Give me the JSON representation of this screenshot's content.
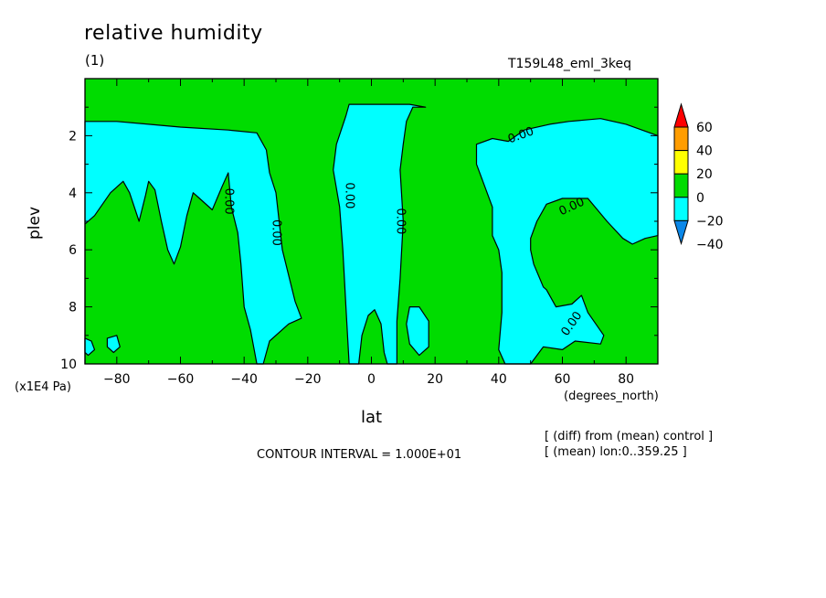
{
  "header": {
    "title": "relative humidity",
    "panel": "(1)",
    "experiment": "T159L48_eml_3keq"
  },
  "footer": {
    "contour_interval": "CONTOUR INTERVAL = 1.000E+01",
    "note_diff": "[ (diff) from (mean) control ]",
    "note_mean": "[ (mean) lon:0..359.25 ]"
  },
  "colors": {
    "level_m40": "#0a87e8",
    "level_m20": "#00ffff",
    "level_0": "#00dc00",
    "level_20": "#ffff00",
    "level_40": "#ff9d00",
    "level_60": "#ff0000",
    "contour": "#000000"
  },
  "chart_data": {
    "type": "contour",
    "title": "relative humidity",
    "xlabel": "lat",
    "ylabel": "plev",
    "xunit": "(degrees_north)",
    "yunit": "(x1E4 Pa)",
    "xlim": [
      -90,
      90
    ],
    "ylim": [
      10,
      0
    ],
    "xticks": [
      -80,
      -60,
      -40,
      -20,
      0,
      20,
      40,
      60,
      80
    ],
    "yticks": [
      2,
      4,
      6,
      8,
      10
    ],
    "contour_label": "0.00",
    "colorbar": {
      "labels": [
        "60",
        "40",
        "20",
        "0",
        "-20",
        "-40"
      ],
      "boundaries": [
        60,
        40,
        20,
        0,
        -20,
        -40
      ]
    },
    "background_level": "0 to 20",
    "regions": [
      {
        "name": "southern-hemisphere-negative",
        "level": "-20 to 0",
        "points": [
          [
            -90,
            10
          ],
          [
            -90,
            5.1
          ],
          [
            -87,
            4.8
          ],
          [
            -82,
            4.0
          ],
          [
            -78,
            3.6
          ],
          [
            -76,
            4.0
          ],
          [
            -73,
            5.0
          ],
          [
            -71,
            4.1
          ],
          [
            -70,
            3.6
          ],
          [
            -68,
            3.9
          ],
          [
            -66,
            5.0
          ],
          [
            -64,
            6.0
          ],
          [
            -62,
            6.5
          ],
          [
            -60,
            5.9
          ],
          [
            -58,
            4.8
          ],
          [
            -56,
            4.0
          ],
          [
            -54,
            4.2
          ],
          [
            -50,
            4.6
          ],
          [
            -47,
            3.8
          ],
          [
            -45,
            3.3
          ],
          [
            -44,
            4.5
          ],
          [
            -42,
            5.4
          ],
          [
            -41,
            6.5
          ],
          [
            -40,
            8.0
          ],
          [
            -38,
            8.8
          ],
          [
            -36,
            10
          ],
          [
            -34,
            10
          ],
          [
            -32,
            9.2
          ],
          [
            -26,
            8.6
          ],
          [
            -22,
            8.4
          ],
          [
            -24,
            7.8
          ],
          [
            -28,
            6.0
          ],
          [
            -29,
            5.0
          ],
          [
            -30,
            4.0
          ],
          [
            -32,
            3.3
          ],
          [
            -33,
            2.5
          ],
          [
            -36,
            1.9
          ],
          [
            -45,
            1.8
          ],
          [
            -60,
            1.7
          ],
          [
            -70,
            1.6
          ],
          [
            -80,
            1.5
          ],
          [
            -90,
            1.5
          ]
        ]
      },
      {
        "name": "equatorial-negative",
        "level": "-20 to 0",
        "points": [
          [
            -7,
            10
          ],
          [
            -4,
            10
          ],
          [
            -3,
            9.0
          ],
          [
            -1,
            8.3
          ],
          [
            1,
            8.1
          ],
          [
            3,
            8.6
          ],
          [
            4,
            9.6
          ],
          [
            5,
            10
          ],
          [
            8,
            10
          ],
          [
            8,
            8.5
          ],
          [
            9,
            7.0
          ],
          [
            10,
            5.0
          ],
          [
            9,
            3.2
          ],
          [
            10,
            2.3
          ],
          [
            11,
            1.5
          ],
          [
            13,
            1.0
          ],
          [
            17,
            1.0
          ],
          [
            12,
            0.9
          ],
          [
            -7,
            0.9
          ],
          [
            -8,
            1.3
          ],
          [
            -11,
            2.3
          ],
          [
            -12,
            3.2
          ],
          [
            -10,
            4.5
          ],
          [
            -9,
            6.0
          ],
          [
            -8,
            8.0
          ]
        ]
      },
      {
        "name": "northern-hemisphere-negative",
        "level": "-20 to 0",
        "points": [
          [
            90,
            2.0
          ],
          [
            80,
            1.6
          ],
          [
            72,
            1.4
          ],
          [
            62,
            1.5
          ],
          [
            56,
            1.6
          ],
          [
            48,
            1.8
          ],
          [
            43,
            2.2
          ],
          [
            38,
            2.1
          ],
          [
            33,
            2.3
          ],
          [
            33,
            3.0
          ],
          [
            38,
            4.5
          ],
          [
            38,
            5.5
          ],
          [
            40,
            6.0
          ],
          [
            41,
            6.8
          ],
          [
            41,
            8.2
          ],
          [
            40,
            9.5
          ],
          [
            42,
            10
          ],
          [
            50,
            10
          ],
          [
            54,
            9.4
          ],
          [
            60,
            9.5
          ],
          [
            64,
            9.2
          ],
          [
            72,
            9.3
          ],
          [
            73,
            9.0
          ],
          [
            68,
            8.2
          ],
          [
            66,
            7.6
          ],
          [
            63,
            7.9
          ],
          [
            58,
            8.0
          ],
          [
            55,
            7.4
          ],
          [
            54,
            7.3
          ],
          [
            51,
            6.5
          ],
          [
            50,
            6.0
          ],
          [
            50,
            5.6
          ],
          [
            52,
            5.0
          ],
          [
            55,
            4.4
          ],
          [
            60,
            4.2
          ],
          [
            68,
            4.2
          ],
          [
            74,
            5.0
          ],
          [
            79,
            5.6
          ],
          [
            82,
            5.8
          ],
          [
            86,
            5.6
          ],
          [
            90,
            5.5
          ]
        ]
      },
      {
        "name": "equatorial-island-negative",
        "level": "-20 to 0",
        "points": [
          [
            12,
            9.3
          ],
          [
            11,
            8.6
          ],
          [
            12,
            8.0
          ],
          [
            15,
            8.0
          ],
          [
            18,
            8.5
          ],
          [
            18,
            9.4
          ],
          [
            15,
            9.7
          ]
        ]
      },
      {
        "name": "southern-edge-island-negative",
        "level": "-20 to 0",
        "points": [
          [
            -90,
            9.1
          ],
          [
            -88,
            9.2
          ],
          [
            -87,
            9.5
          ],
          [
            -89,
            9.7
          ],
          [
            -90,
            9.6
          ]
        ]
      },
      {
        "name": "southern-small-island-negative",
        "level": "-20 to 0",
        "points": [
          [
            -83,
            9.1
          ],
          [
            -80,
            9.0
          ],
          [
            -79,
            9.4
          ],
          [
            -81,
            9.6
          ],
          [
            -83,
            9.4
          ]
        ]
      }
    ]
  }
}
